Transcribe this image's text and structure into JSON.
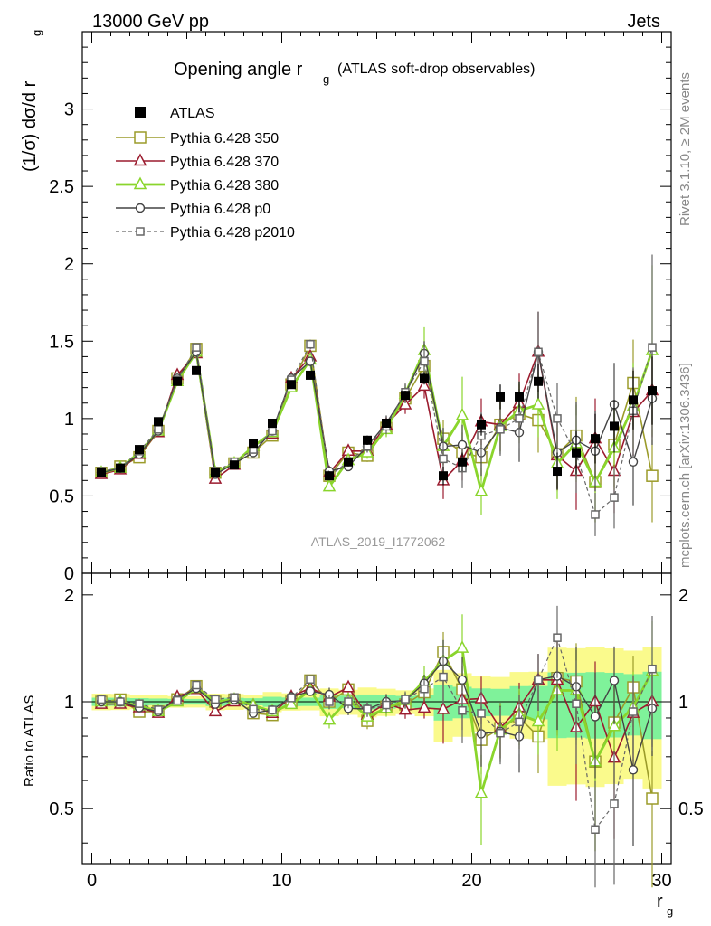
{
  "header": {
    "left": "13000 GeV pp",
    "right": "Jets",
    "title_main": "Opening angle r",
    "title_sub": "g",
    "title_paren": "(ATLAS soft-drop observables)",
    "ylabel_top": "(1/σ) dσ/d r",
    "ylabel_top_sub": "g",
    "ylabel_ratio": "Ratio to ATLAS",
    "xlabel": "r",
    "xlabel_sub": "g",
    "analysis_id": "ATLAS_2019_I1772062",
    "side_text_top": "Rivet 3.1.10, ≥ 2M events",
    "side_text_bottom": "mcplots.cern.ch [arXiv:1306.3436]"
  },
  "colors": {
    "data": "#000000",
    "p350": "#9b9b2a",
    "p370": "#9b1b2e",
    "p380": "#8ad52c",
    "p0": "#444444",
    "p2010": "#666666",
    "band_inner": "#7ff29a",
    "band_outer": "#fafa8c"
  },
  "chart_data": {
    "type": "scatter",
    "xlim": [
      -0.5,
      30.5
    ],
    "ylim_main": [
      0,
      3.5
    ],
    "ylim_ratio": [
      0.35,
      2.3
    ],
    "x_ticks": [
      "0",
      "10",
      "20",
      "30"
    ],
    "y_ticks_main": [
      "0",
      "0.5",
      "1",
      "1.5",
      "2",
      "2.5",
      "3"
    ],
    "y_ticks_ratio": [
      "0.5",
      "1",
      "2"
    ],
    "legend_position": "top-left",
    "x": [
      0.5,
      1.5,
      2.5,
      3.5,
      4.5,
      5.5,
      6.5,
      7.5,
      8.5,
      9.5,
      10.5,
      11.5,
      12.5,
      13.5,
      14.5,
      15.5,
      16.5,
      17.5,
      18.5,
      19.5,
      20.5,
      21.5,
      22.5,
      23.5,
      24.5,
      25.5,
      26.5,
      27.5,
      28.5,
      29.5
    ],
    "data_points": {
      "name": "ATLAS",
      "values": [
        0.65,
        0.68,
        0.8,
        0.98,
        1.24,
        1.31,
        0.65,
        0.7,
        0.84,
        0.97,
        1.22,
        1.28,
        0.63,
        0.72,
        0.86,
        0.97,
        1.15,
        1.26,
        0.63,
        0.72,
        0.96,
        1.14,
        1.14,
        1.24,
        0.66,
        0.78,
        0.87,
        0.95,
        1.12,
        1.18
      ],
      "errors": [
        0.01,
        0.01,
        0.01,
        0.01,
        0.01,
        0.01,
        0.01,
        0.01,
        0.01,
        0.02,
        0.02,
        0.02,
        0.02,
        0.02,
        0.03,
        0.03,
        0.03,
        0.04,
        0.06,
        0.06,
        0.07,
        0.08,
        0.1,
        0.11,
        0.12,
        0.14,
        0.16,
        0.17,
        0.19,
        0.22
      ]
    },
    "series": [
      {
        "name": "Pythia 6.428 350",
        "values": [
          0.65,
          0.69,
          0.75,
          0.92,
          1.26,
          1.45,
          0.65,
          0.71,
          0.78,
          0.89,
          1.22,
          1.47,
          0.63,
          0.78,
          0.76,
          0.94,
          1.13,
          1.34,
          0.87,
          0.78,
          0.75,
          0.96,
          1.03,
          0.99,
          0.77,
          0.89,
          0.59,
          0.83,
          1.23,
          0.63
        ],
        "errors": [
          0.01,
          0.01,
          0.01,
          0.01,
          0.02,
          0.02,
          0.01,
          0.01,
          0.01,
          0.02,
          0.02,
          0.03,
          0.03,
          0.03,
          0.04,
          0.05,
          0.06,
          0.08,
          0.12,
          0.13,
          0.15,
          0.17,
          0.19,
          0.21,
          0.23,
          0.25,
          0.26,
          0.27,
          0.28,
          0.3
        ]
      },
      {
        "name": "Pythia 6.428 370",
        "values": [
          0.64,
          0.67,
          0.77,
          0.91,
          1.28,
          1.42,
          0.61,
          0.7,
          0.82,
          0.9,
          1.26,
          1.4,
          0.65,
          0.79,
          0.79,
          0.96,
          1.09,
          1.21,
          0.6,
          0.73,
          0.98,
          0.96,
          1.1,
          1.43,
          0.76,
          0.66,
          0.87,
          0.66,
          1.04,
          1.18
        ],
        "errors": [
          0.01,
          0.01,
          0.01,
          0.01,
          0.02,
          0.02,
          0.01,
          0.01,
          0.01,
          0.02,
          0.02,
          0.03,
          0.03,
          0.03,
          0.04,
          0.05,
          0.06,
          0.08,
          0.12,
          0.13,
          0.15,
          0.17,
          0.19,
          0.26,
          0.23,
          0.25,
          0.26,
          0.27,
          0.28,
          0.3
        ]
      },
      {
        "name": "Pythia 6.428 380",
        "values": [
          0.65,
          0.68,
          0.78,
          0.92,
          1.24,
          1.43,
          0.65,
          0.71,
          0.82,
          0.91,
          1.2,
          1.38,
          0.56,
          0.73,
          0.78,
          0.93,
          1.16,
          1.44,
          0.82,
          1.02,
          0.53,
          0.95,
          1.05,
          1.09,
          0.71,
          0.84,
          0.59,
          0.81,
          1.08,
          1.44
        ],
        "errors": [
          0.01,
          0.01,
          0.01,
          0.01,
          0.02,
          0.02,
          0.01,
          0.01,
          0.01,
          0.02,
          0.02,
          0.03,
          0.03,
          0.03,
          0.04,
          0.05,
          0.06,
          0.15,
          0.12,
          0.25,
          0.15,
          0.17,
          0.19,
          0.21,
          0.23,
          0.25,
          0.26,
          0.27,
          0.28,
          0.55
        ]
      },
      {
        "name": "Pythia 6.428 p0",
        "values": [
          0.65,
          0.68,
          0.77,
          0.92,
          1.26,
          1.43,
          0.64,
          0.71,
          0.78,
          0.92,
          1.26,
          1.37,
          0.66,
          0.69,
          0.82,
          0.97,
          1.16,
          1.42,
          0.82,
          0.83,
          0.78,
          0.94,
          0.91,
          1.43,
          0.78,
          0.86,
          0.79,
          1.09,
          0.72,
          1.13
        ],
        "errors": [
          0.01,
          0.01,
          0.01,
          0.01,
          0.02,
          0.02,
          0.01,
          0.01,
          0.01,
          0.02,
          0.02,
          0.03,
          0.03,
          0.03,
          0.04,
          0.05,
          0.06,
          0.08,
          0.12,
          0.13,
          0.15,
          0.17,
          0.19,
          0.26,
          0.23,
          0.25,
          0.26,
          0.27,
          0.28,
          0.3
        ]
      },
      {
        "name": "Pythia 6.428 p2010",
        "values": [
          0.66,
          0.68,
          0.79,
          0.93,
          1.25,
          1.46,
          0.66,
          0.72,
          0.8,
          0.92,
          1.25,
          1.48,
          0.63,
          0.72,
          0.82,
          0.95,
          1.17,
          1.37,
          0.74,
          0.68,
          0.89,
          0.93,
          1.0,
          1.43,
          1.0,
          0.77,
          0.38,
          0.49,
          1.05,
          1.46
        ],
        "errors": [
          0.01,
          0.01,
          0.01,
          0.01,
          0.02,
          0.02,
          0.01,
          0.01,
          0.01,
          0.02,
          0.02,
          0.03,
          0.03,
          0.03,
          0.04,
          0.05,
          0.06,
          0.08,
          0.12,
          0.13,
          0.15,
          0.17,
          0.19,
          0.26,
          0.23,
          0.25,
          0.14,
          0.2,
          0.28,
          0.6
        ]
      }
    ]
  }
}
